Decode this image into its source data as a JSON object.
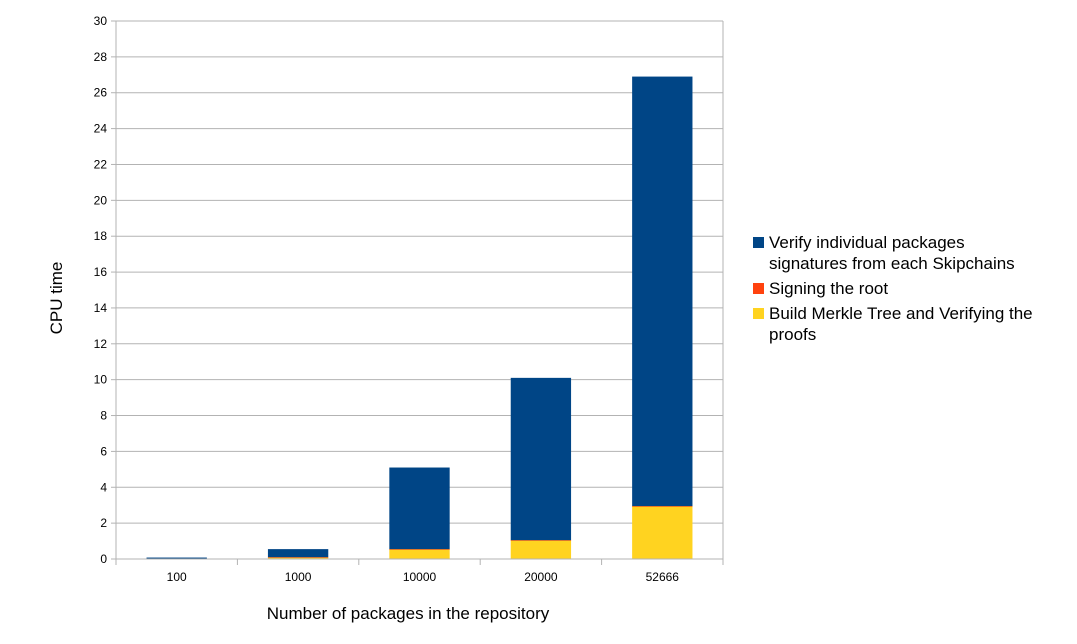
{
  "chart_data": {
    "type": "bar",
    "stacked": true,
    "title": "",
    "xlabel": "Number of packages in the repository",
    "ylabel": "CPU time",
    "categories": [
      "100",
      "1000",
      "10000",
      "20000",
      "52666"
    ],
    "ylim": [
      0,
      30
    ],
    "yticks": [
      0,
      2,
      4,
      6,
      8,
      10,
      12,
      14,
      16,
      18,
      20,
      22,
      24,
      26,
      28,
      30
    ],
    "grid": true,
    "legend_position": "right",
    "series": [
      {
        "name": "Build Merkle Tree and Verifying the proofs",
        "legend_lines": [
          "Build Merkle Tree and Verifying the",
          "proofs"
        ],
        "color": "#ffd320",
        "values": [
          0.02,
          0.1,
          0.55,
          1.05,
          2.95
        ]
      },
      {
        "name": "Signing the root",
        "legend_lines": [
          "Signing the root"
        ],
        "color": "#ff420e",
        "values": [
          0.001,
          0.001,
          0.001,
          0.001,
          0.001
        ]
      },
      {
        "name": "Verify individual packages signatures from each Skipchains",
        "legend_lines": [
          "Verify individual packages",
          "signatures from each Skipchains"
        ],
        "color": "#004586",
        "values": [
          0.06,
          0.45,
          4.55,
          9.05,
          23.95
        ]
      }
    ],
    "legend_order": [
      2,
      1,
      0
    ]
  }
}
